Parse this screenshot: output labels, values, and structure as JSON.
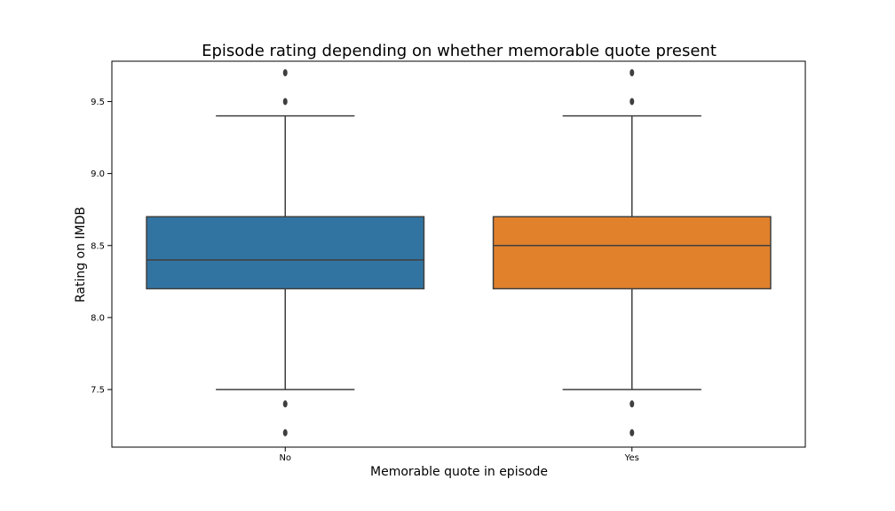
{
  "chart_data": {
    "type": "box",
    "title": "Episode rating depending on whether memorable quote present",
    "xlabel": "Memorable quote in episode",
    "ylabel": "Rating on IMDB",
    "ylim": [
      7.1,
      9.78
    ],
    "yticks": [
      7.5,
      8.0,
      8.5,
      9.0,
      9.5
    ],
    "ytick_labels": [
      "7.5",
      "8.0",
      "8.5",
      "9.0",
      "9.5"
    ],
    "grid": false,
    "categories": [
      "No",
      "Yes"
    ],
    "boxes": [
      {
        "category": "No",
        "color": "#3274a1",
        "whisker_low": 7.5,
        "q1": 8.2,
        "median": 8.4,
        "q3": 8.7,
        "whisker_high": 9.4,
        "outliers": [
          9.7,
          9.5,
          7.4,
          7.2
        ]
      },
      {
        "category": "Yes",
        "color": "#e1812c",
        "whisker_low": 7.5,
        "q1": 8.2,
        "median": 8.5,
        "q3": 8.7,
        "whisker_high": 9.4,
        "outliers": [
          9.7,
          9.5,
          7.4,
          7.2
        ]
      }
    ],
    "line_color": "#3f3f3f",
    "outlier_color": "#3f3f3f"
  }
}
